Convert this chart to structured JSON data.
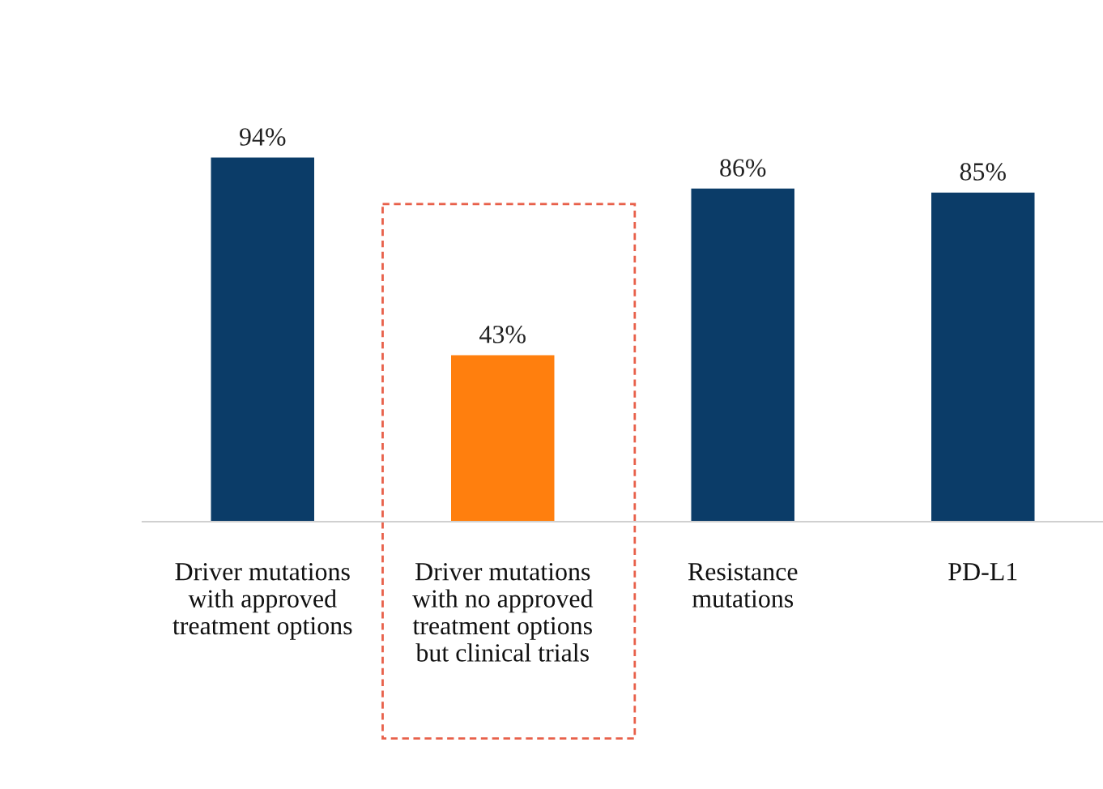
{
  "chart_data": {
    "type": "bar",
    "categories": [
      "Driver mutations\nwith approved\ntreatment options",
      "Driver mutations\nwith no approved\ntreatment options\nbut clinical trials",
      "Resistance\nmutations",
      "PD-L1"
    ],
    "values": [
      94,
      43,
      86,
      85
    ],
    "colors": [
      "#0b3c68",
      "#ff7f0e",
      "#0b3c68",
      "#0b3c68"
    ],
    "value_labels": [
      "94%",
      "43%",
      "86%",
      "85%"
    ],
    "grid": false,
    "legend": false
  }
}
